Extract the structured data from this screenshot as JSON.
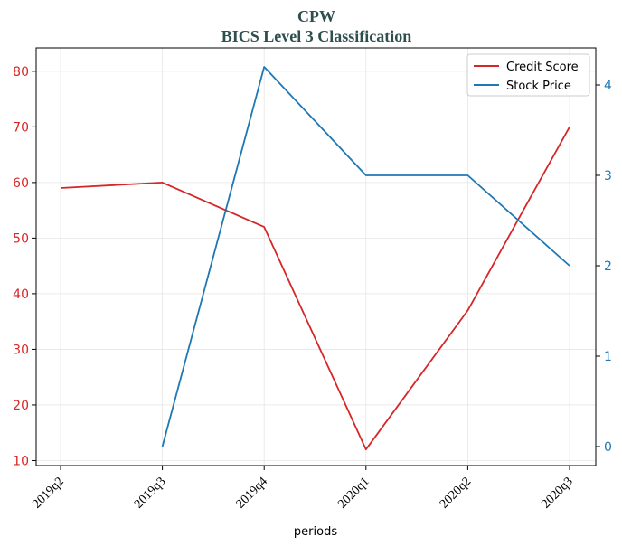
{
  "chart_data": {
    "type": "line",
    "title_line1": "CPW",
    "title_line2": "BICS Level 3 Classification",
    "xlabel": "periods",
    "categories": [
      "2019q2",
      "2019q3",
      "2019q4",
      "2020q1",
      "2020q2",
      "2020q3"
    ],
    "series": [
      {
        "name": "Credit Score",
        "axis": "left",
        "color": "#d62728",
        "values": [
          59,
          60,
          52,
          12,
          37,
          70
        ]
      },
      {
        "name": "Stock Price",
        "axis": "right",
        "color": "#1f77b4",
        "values": [
          null,
          0.0,
          4.2,
          3.0,
          3.0,
          2.0
        ]
      }
    ],
    "left_axis": {
      "ylim": [
        9.1,
        84.2
      ],
      "ticks": [
        10,
        20,
        30,
        40,
        50,
        60,
        70,
        80
      ],
      "color": "#d62728"
    },
    "right_axis": {
      "ylim": [
        -0.21,
        4.41
      ],
      "ticks": [
        0,
        1,
        2,
        3,
        4
      ],
      "color": "#1f77b4"
    },
    "grid": true,
    "legend_position": "top-right"
  }
}
